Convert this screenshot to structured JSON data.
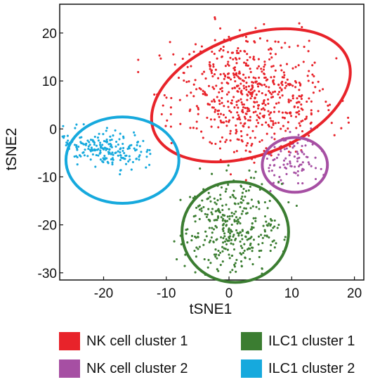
{
  "chart_data": {
    "type": "scatter",
    "title": "",
    "xlabel": "tSNE1",
    "ylabel": "tSNE2",
    "xlim": [
      -27,
      21.5
    ],
    "ylim": [
      -31.5,
      26
    ],
    "x_ticks": [
      -20,
      -10,
      0,
      10,
      20
    ],
    "y_ticks": [
      20,
      10,
      0,
      -10,
      -20,
      -30
    ],
    "grid": false,
    "legend_position": "bottom",
    "series": [
      {
        "name": "NK cell cluster 1",
        "color": "#e8232a",
        "cluster": {
          "cx": 3.5,
          "cy": 7.5,
          "sx": 6.0,
          "sy": 6.5,
          "rot": 0.35,
          "n": 620
        }
      },
      {
        "name": "NK cell cluster 2",
        "color": "#a64fa3",
        "cluster": {
          "cx": 10.0,
          "cy": -6.5,
          "sx": 2.2,
          "sy": 2.6,
          "rot": 0.0,
          "n": 95
        }
      },
      {
        "name": "ILC1 cluster 1",
        "color": "#3b7d31",
        "cluster": {
          "cx": 0.5,
          "cy": -20.5,
          "sx": 4.0,
          "sy": 5.0,
          "rot": 0.0,
          "n": 360
        }
      },
      {
        "name": "ILC1 cluster 2",
        "color": "#16a9dd",
        "cluster": {
          "cx": -20.0,
          "cy": -4.0,
          "sx": 3.8,
          "sy": 1.8,
          "rot": -0.25,
          "n": 210
        }
      }
    ],
    "ellipses": [
      {
        "series": "NK cell cluster 1",
        "cx": 3.5,
        "cy": 7.0,
        "rx": 16.5,
        "ry": 12.5,
        "rot_deg": -20
      },
      {
        "series": "NK cell cluster 2",
        "cx": 10.5,
        "cy": -7.5,
        "rx": 5.2,
        "ry": 5.7,
        "rot_deg": 0
      },
      {
        "series": "ILC1 cluster 1",
        "cx": 1.0,
        "cy": -21.5,
        "rx": 8.5,
        "ry": 10.5,
        "rot_deg": 0
      },
      {
        "series": "ILC1 cluster 2",
        "cx": -17.0,
        "cy": -6.5,
        "rx": 9.0,
        "ry": 9.0,
        "rot_deg": 0
      }
    ]
  },
  "legend": {
    "items": [
      {
        "label": "NK cell cluster 1",
        "color": "#e8232a"
      },
      {
        "label": "ILC1 cluster 1",
        "color": "#3b7d31"
      },
      {
        "label": "NK cell cluster 2",
        "color": "#a64fa3"
      },
      {
        "label": "ILC1 cluster 2",
        "color": "#16a9dd"
      }
    ]
  }
}
